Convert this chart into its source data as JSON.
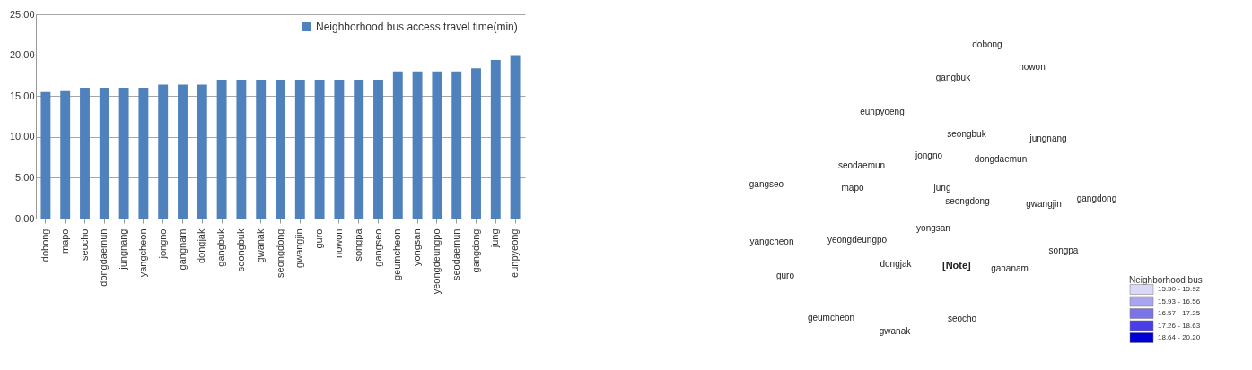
{
  "chart_data": [
    {
      "type": "bar",
      "categories": [
        "dobong",
        "mapo",
        "seocho",
        "dongdaemun",
        "jungnang",
        "yangcheon",
        "jongno",
        "gangnam",
        "dongjak",
        "gangbuk",
        "seongbuk",
        "gwanak",
        "seongdong",
        "gwangjin",
        "guro",
        "nowon",
        "songpa",
        "gangseo",
        "geumcheon",
        "yongsan",
        "yeongdeungpo",
        "seodaemun",
        "gangdong",
        "jung",
        "eunpyeong"
      ],
      "series": [
        {
          "name": "Neighborhood bus access travel time(min)",
          "color": "#4f81bd",
          "values": [
            15.5,
            15.6,
            16.0,
            16.0,
            16.0,
            16.0,
            16.4,
            16.4,
            16.4,
            17.0,
            17.0,
            17.0,
            17.0,
            17.0,
            17.0,
            17.0,
            17.0,
            17.0,
            18.0,
            18.0,
            18.0,
            18.0,
            18.4,
            19.4,
            20.0
          ]
        }
      ],
      "ylim": [
        0,
        25
      ],
      "yticks": [
        {
          "value": 0,
          "label": "0.00"
        },
        {
          "value": 5,
          "label": "5.00"
        },
        {
          "value": 10,
          "label": "10.00"
        },
        {
          "value": 15,
          "label": "15.00"
        },
        {
          "value": 20,
          "label": "20.00"
        },
        {
          "value": 25,
          "label": "25.00"
        }
      ],
      "grid": "y",
      "legend": "top right"
    },
    {
      "type": "other",
      "legend_title": "Neighborhood bus",
      "categories": [
        "15.50 - 15.92",
        "15.93 - 16.56",
        "16.57 - 17.25",
        "17.26 - 18.63",
        "18.64 - 20.20"
      ],
      "colors": [
        "#d9d9f7",
        "#a9a6ef",
        "#7b74e6",
        "#4a3fe6",
        "#0000d6"
      ],
      "annotations": [
        "[Note]",
        "dobong",
        "nowon",
        "gangbuk",
        "eunpyoeng",
        "seongbuk",
        "jungnang",
        "jongno",
        "dongdaemun",
        "seodaemun",
        "mapo",
        "jung",
        "gangseo",
        "seongdong",
        "gwangjin",
        "gangdong",
        "yangcheon",
        "yeongdeungpo",
        "yongsan",
        "songpa",
        "guro",
        "dongjak",
        "gananam",
        "seocho",
        "geumcheon",
        "gwanak"
      ]
    }
  ]
}
